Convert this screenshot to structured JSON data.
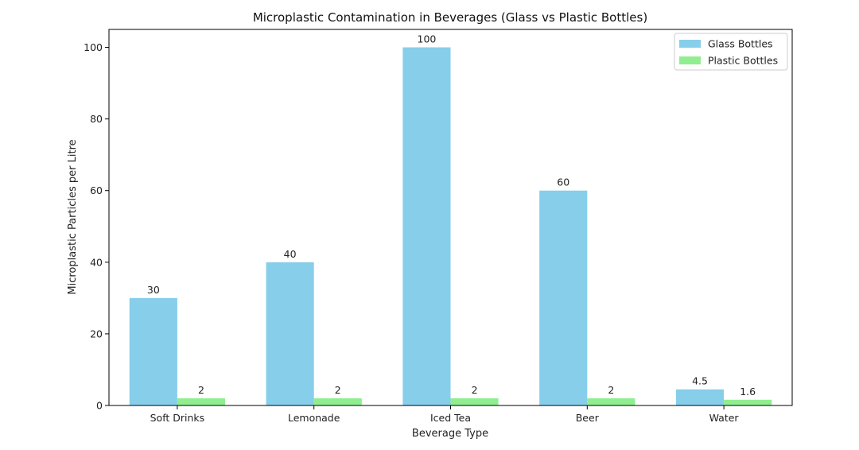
{
  "chart_data": {
    "type": "bar",
    "title": "Microplastic Contamination in Beverages (Glass vs Plastic Bottles)",
    "xlabel": "Beverage Type",
    "ylabel": "Microplastic Particles per Litre",
    "categories": [
      "Soft Drinks",
      "Lemonade",
      "Iced Tea",
      "Beer",
      "Water"
    ],
    "series": [
      {
        "name": "Glass Bottles",
        "values": [
          30,
          40,
          100,
          60,
          4.5
        ],
        "color": "#87ceeb",
        "labels": [
          "30",
          "40",
          "100",
          "60",
          "4.5"
        ]
      },
      {
        "name": "Plastic Bottles",
        "values": [
          2,
          2,
          2,
          2,
          1.6
        ],
        "color": "#90ee90",
        "labels": [
          "2",
          "2",
          "2",
          "2",
          "1.6"
        ]
      }
    ],
    "ylim": [
      0,
      105
    ],
    "yticks": [
      0,
      20,
      40,
      60,
      80,
      100
    ],
    "grid": false,
    "legend_position": "top-right"
  }
}
